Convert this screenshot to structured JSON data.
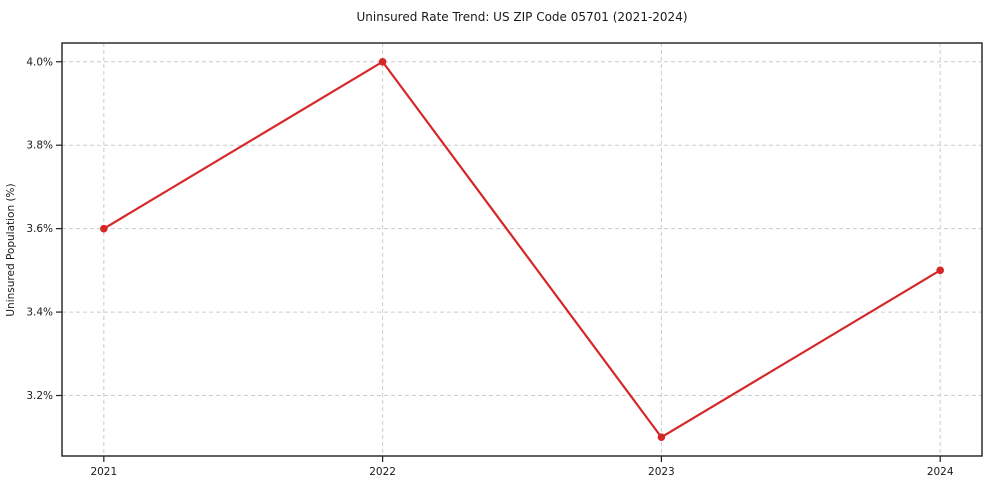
{
  "chart_data": {
    "type": "line",
    "title": "Uninsured Rate Trend: US ZIP Code 05701 (2021-2024)",
    "xlabel": "",
    "ylabel": "Uninsured Population (%)",
    "x": [
      2021,
      2022,
      2023,
      2024
    ],
    "x_tick_labels": [
      "2021",
      "2022",
      "2023",
      "2024"
    ],
    "values": [
      3.6,
      4.0,
      3.1,
      3.5
    ],
    "y_ticks": [
      3.2,
      3.4,
      3.6,
      3.8,
      4.0
    ],
    "y_tick_labels": [
      "3.2%",
      "3.4%",
      "3.6%",
      "3.8%",
      "4.0%"
    ],
    "xlim": [
      2020.85,
      2024.15
    ],
    "ylim": [
      3.055,
      4.045
    ],
    "grid": "dashed-both-axes",
    "legend": "none",
    "line_color": "#d62728",
    "marker": "circle",
    "marker_color": "#d62728",
    "background_color": "#ffffff"
  }
}
